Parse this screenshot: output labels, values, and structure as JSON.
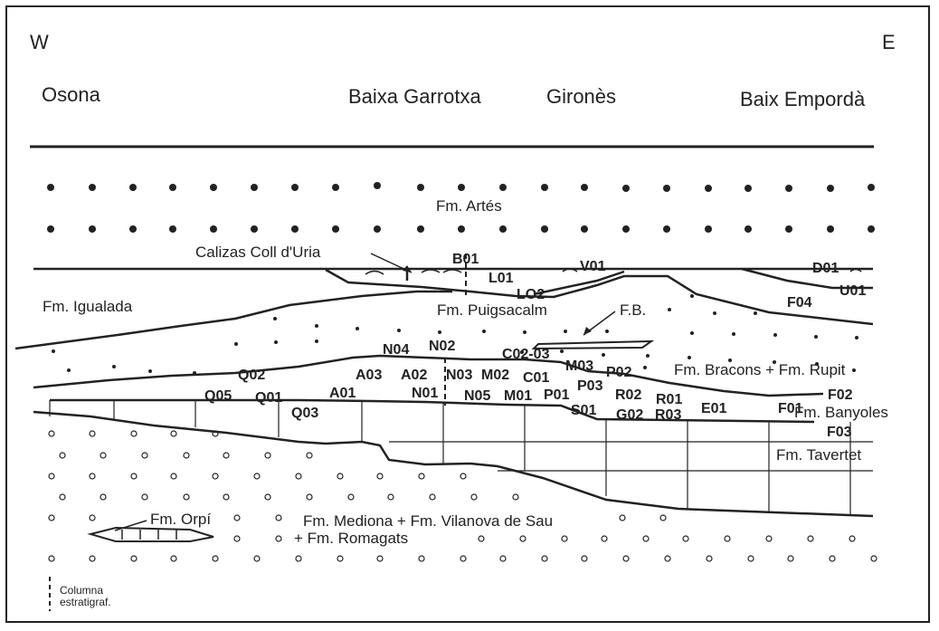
{
  "compass": {
    "west": "W",
    "east": "E"
  },
  "regions": {
    "osona": "Osona",
    "baixa_garrotxa": "Baixa Garrotxa",
    "girones": "Gironès",
    "baix_emporda": "Baix Empordà"
  },
  "formations": {
    "artes": "Fm. Artés",
    "calizas_coll_duria": "Calizas Coll d'Uria",
    "igualada": "Fm. Igualada",
    "puigsacalm": "Fm. Puigsacalm",
    "fb": "F.B.",
    "bracons_rupit": "Fm. Bracons + Fm. Rupit",
    "banyoles": "Fm. Banyoles",
    "tavertet": "Fm. Tavertet",
    "orpi": "Fm. Orpí",
    "mediona_line1": "Fm. Mediona + Fm. Vilanova de Sau",
    "mediona_line2": "+ Fm. Romagats"
  },
  "section_codes": [
    "B01",
    "L01",
    "V01",
    "D01",
    "LO2",
    "U01",
    "F04",
    "N04",
    "N02",
    "C02-03",
    "M03",
    "Q02",
    "A03",
    "A02",
    "N03",
    "M02",
    "C01",
    "P02",
    "P03",
    "N01",
    "N05",
    "M01",
    "P01",
    "R02",
    "R01",
    "F02",
    "Q05",
    "Q01",
    "A01",
    "Q03",
    "S01",
    "G02",
    "R03",
    "E01",
    "F01",
    "F03"
  ],
  "legend": {
    "line1": "Columna",
    "line2": "estratigraf."
  },
  "colors": {
    "ink": "#222222",
    "background": "#ffffff"
  }
}
